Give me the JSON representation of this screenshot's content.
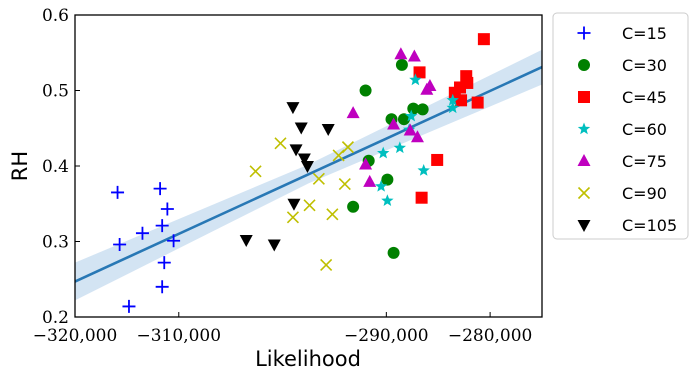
{
  "chart_data": {
    "type": "scatter",
    "title": "",
    "xlabel": "Likelihood",
    "ylabel": "RH",
    "xlim": [
      -320000,
      -275000
    ],
    "ylim": [
      0.2,
      0.6
    ],
    "xticks": [
      -320000,
      -310000,
      -290000,
      -280000
    ],
    "xtick_labels": [
      "−320,000",
      "−310,000",
      "−290,000",
      "−280,000"
    ],
    "yticks": [
      0.2,
      0.3,
      0.4,
      0.5,
      0.6
    ],
    "ytick_labels": [
      "0.2",
      "0.3",
      "0.4",
      "0.5",
      "0.6"
    ],
    "grid": false,
    "legend_position": "outside-right",
    "regression": {
      "color": "#2878b5",
      "band_color": "#aecde9",
      "line": [
        [
          -320000,
          0.247
        ],
        [
          -275000,
          0.531
        ]
      ],
      "band_upper": [
        [
          -320000,
          0.272
        ],
        [
          -297500,
          0.402
        ],
        [
          -275000,
          0.554
        ]
      ],
      "band_lower": [
        [
          -320000,
          0.222
        ],
        [
          -297500,
          0.377
        ],
        [
          -275000,
          0.508
        ]
      ]
    },
    "series": [
      {
        "name": "C=15",
        "marker": "plus",
        "color": "#0000ff",
        "points": [
          [
            -315900,
            0.365
          ],
          [
            -315700,
            0.296
          ],
          [
            -314800,
            0.214
          ],
          [
            -313500,
            0.311
          ],
          [
            -311800,
            0.37
          ],
          [
            -311600,
            0.321
          ],
          [
            -311600,
            0.24
          ],
          [
            -311400,
            0.272
          ],
          [
            -311100,
            0.343
          ],
          [
            -310500,
            0.301
          ]
        ]
      },
      {
        "name": "C=30",
        "marker": "circle",
        "color": "#008000",
        "points": [
          [
            -293200,
            0.346
          ],
          [
            -292000,
            0.5
          ],
          [
            -291700,
            0.407
          ],
          [
            -289900,
            0.382
          ],
          [
            -289500,
            0.462
          ],
          [
            -289300,
            0.285
          ],
          [
            -288500,
            0.534
          ],
          [
            -288300,
            0.462
          ],
          [
            -287400,
            0.476
          ],
          [
            -286500,
            0.475
          ]
        ]
      },
      {
        "name": "C=45",
        "marker": "square",
        "color": "#ff0000",
        "points": [
          [
            -286800,
            0.524
          ],
          [
            -286600,
            0.358
          ],
          [
            -285100,
            0.408
          ],
          [
            -283400,
            0.497
          ],
          [
            -282900,
            0.504
          ],
          [
            -282800,
            0.487
          ],
          [
            -282300,
            0.519
          ],
          [
            -282200,
            0.51
          ],
          [
            -281200,
            0.484
          ],
          [
            -280600,
            0.568
          ]
        ]
      },
      {
        "name": "C=60",
        "marker": "star",
        "color": "#00bfbf",
        "points": [
          [
            -290500,
            0.373
          ],
          [
            -290300,
            0.417
          ],
          [
            -289900,
            0.354
          ],
          [
            -288700,
            0.424
          ],
          [
            -287800,
            0.448
          ],
          [
            -287600,
            0.466
          ],
          [
            -287200,
            0.514
          ],
          [
            -286400,
            0.394
          ],
          [
            -283600,
            0.477
          ],
          [
            -283600,
            0.487
          ]
        ]
      },
      {
        "name": "C=75",
        "marker": "triangle-up",
        "color": "#bf00bf",
        "points": [
          [
            -293200,
            0.47
          ],
          [
            -292000,
            0.402
          ],
          [
            -291600,
            0.379
          ],
          [
            -289300,
            0.455
          ],
          [
            -288600,
            0.548
          ],
          [
            -287700,
            0.447
          ],
          [
            -287300,
            0.545
          ],
          [
            -287000,
            0.438
          ],
          [
            -286100,
            0.501
          ],
          [
            -285800,
            0.506
          ]
        ]
      },
      {
        "name": "C=90",
        "marker": "x",
        "color": "#bfbf00",
        "points": [
          [
            -302600,
            0.393
          ],
          [
            -300200,
            0.43
          ],
          [
            -299000,
            0.332
          ],
          [
            -297400,
            0.348
          ],
          [
            -296500,
            0.383
          ],
          [
            -295800,
            0.269
          ],
          [
            -295200,
            0.336
          ],
          [
            -294600,
            0.414
          ],
          [
            -294000,
            0.376
          ],
          [
            -293700,
            0.425
          ]
        ]
      },
      {
        "name": "C=105",
        "marker": "triangle-down",
        "color": "#000000",
        "points": [
          [
            -303500,
            0.302
          ],
          [
            -300800,
            0.296
          ],
          [
            -299000,
            0.478
          ],
          [
            -298900,
            0.35
          ],
          [
            -298700,
            0.422
          ],
          [
            -298200,
            0.451
          ],
          [
            -297900,
            0.41
          ],
          [
            -297600,
            0.4
          ],
          [
            -295600,
            0.449
          ]
        ]
      }
    ]
  }
}
